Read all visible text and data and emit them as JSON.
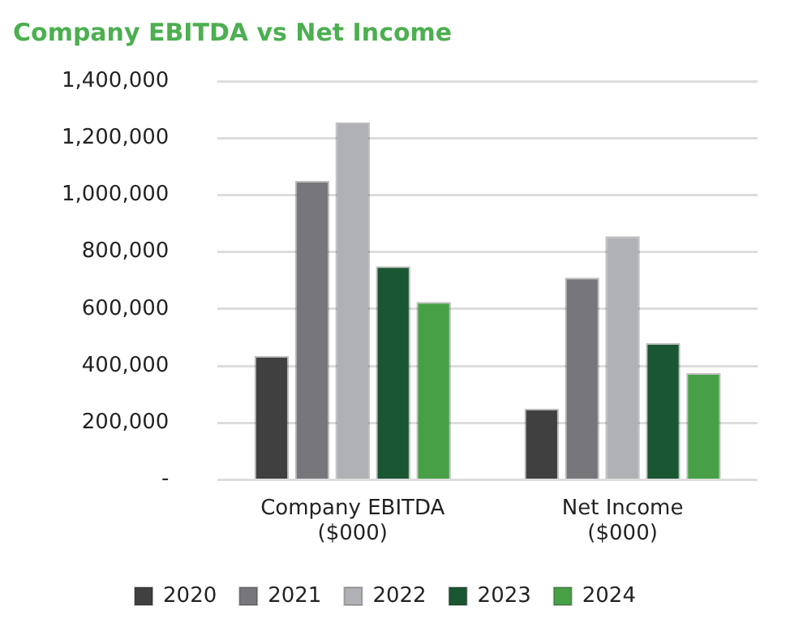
{
  "chart_data": {
    "type": "bar",
    "title": "Company EBITDA vs Net Income",
    "categories": [
      "Company EBITDA ($000)",
      "Net Income ($000)"
    ],
    "series": [
      {
        "name": "2020",
        "color": "#404040",
        "values": [
          435000,
          250000
        ]
      },
      {
        "name": "2021",
        "color": "#77777b",
        "values": [
          1050000,
          710000
        ]
      },
      {
        "name": "2022",
        "color": "#b0b1b4",
        "values": [
          1255000,
          855000
        ]
      },
      {
        "name": "2023",
        "color": "#1a5632",
        "values": [
          750000,
          480000
        ]
      },
      {
        "name": "2024",
        "color": "#47a046",
        "values": [
          625000,
          375000
        ]
      }
    ],
    "ylim": [
      0,
      1400000
    ],
    "yticks": [
      {
        "value": 0,
        "label": "-"
      },
      {
        "value": 200000,
        "label": "200,000"
      },
      {
        "value": 400000,
        "label": "400,000"
      },
      {
        "value": 600000,
        "label": "600,000"
      },
      {
        "value": 800000,
        "label": "800,000"
      },
      {
        "value": 1000000,
        "label": "1,000,000"
      },
      {
        "value": 1200000,
        "label": "1,200,000"
      },
      {
        "value": 1400000,
        "label": "1,400,000"
      }
    ],
    "grid": "y",
    "legend": "bottom"
  }
}
